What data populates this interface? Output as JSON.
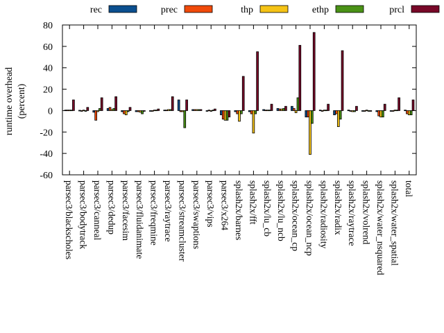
{
  "chart_data": {
    "type": "bar",
    "title": "",
    "xlabel": "",
    "ylabel": "runtime overhead",
    "ylabel_line2": "(percent)",
    "ylim": [
      -60,
      80
    ],
    "yticks": [
      -60,
      -40,
      -20,
      0,
      20,
      40,
      60,
      80
    ],
    "grid": false,
    "legend_position": "top",
    "categories": [
      "parsec3/blackscholes",
      "parsec3/bodytrack",
      "parsec3/canneal",
      "parsec3/dedup",
      "parsec3/facesim",
      "parsec3/fluidanimate",
      "parsec3/freqmine",
      "parsec3/raytrace",
      "parsec3/streamcluster",
      "parsec3/swaptions",
      "parsec3/vips",
      "parsec3/x264",
      "splash2x/barnes",
      "splash2x/fft",
      "splash2x/lu_cb",
      "splash2x/lu_ncb",
      "splash2x/ocean_cp",
      "splash2x/ocean_ncp",
      "splash2x/radiosity",
      "splash2x/radix",
      "splash2x/raytrace",
      "splash2x/volrend",
      "splash2x/water_nsquared",
      "splash2x/water_spatial",
      "total"
    ],
    "series": [
      {
        "name": "rec",
        "color": "#0b4f8f",
        "values": [
          0.5,
          0.3,
          -1.5,
          2,
          -1,
          -1,
          -0.5,
          0.5,
          10,
          1,
          -0.5,
          -4,
          -1,
          -1,
          1,
          2,
          4,
          -6,
          0.5,
          -4,
          0.5,
          -0.5,
          -1,
          -0.5,
          0.5
        ]
      },
      {
        "name": "prec",
        "color": "#f04a0a",
        "values": [
          0.5,
          -0.5,
          -9,
          3,
          -3,
          -1,
          -0.5,
          0.5,
          -1,
          1,
          0.5,
          -8,
          -3,
          -3,
          0.5,
          1.5,
          2,
          -6,
          -0.5,
          -3,
          -0.5,
          -0.5,
          -5,
          -0.5,
          -3
        ]
      },
      {
        "name": "thp",
        "color": "#f5c316",
        "values": [
          0.5,
          0.5,
          -1,
          1,
          -4,
          -1.5,
          0.5,
          1,
          -1,
          1,
          -0.5,
          -9,
          -10,
          -21,
          0.5,
          1.5,
          -2,
          -41,
          0.5,
          -15,
          -1,
          0.5,
          -6,
          0.5,
          -4
        ]
      },
      {
        "name": "ethp",
        "color": "#4a9216",
        "values": [
          0.5,
          -0.5,
          2,
          2,
          -1,
          -3,
          0.5,
          1,
          -16,
          1,
          0.5,
          -9,
          -3,
          -3,
          0.5,
          2,
          12,
          -12,
          0.5,
          -8,
          -1,
          -0.5,
          -6,
          0.5,
          -4
        ]
      },
      {
        "name": "prcl",
        "color": "#780828",
        "values": [
          10,
          3,
          12,
          13,
          3,
          -0.5,
          1.5,
          13,
          10,
          1,
          1.5,
          -6,
          32,
          55,
          6,
          4,
          61,
          73,
          6,
          56,
          4,
          -0.5,
          6,
          12,
          10
        ]
      }
    ]
  }
}
